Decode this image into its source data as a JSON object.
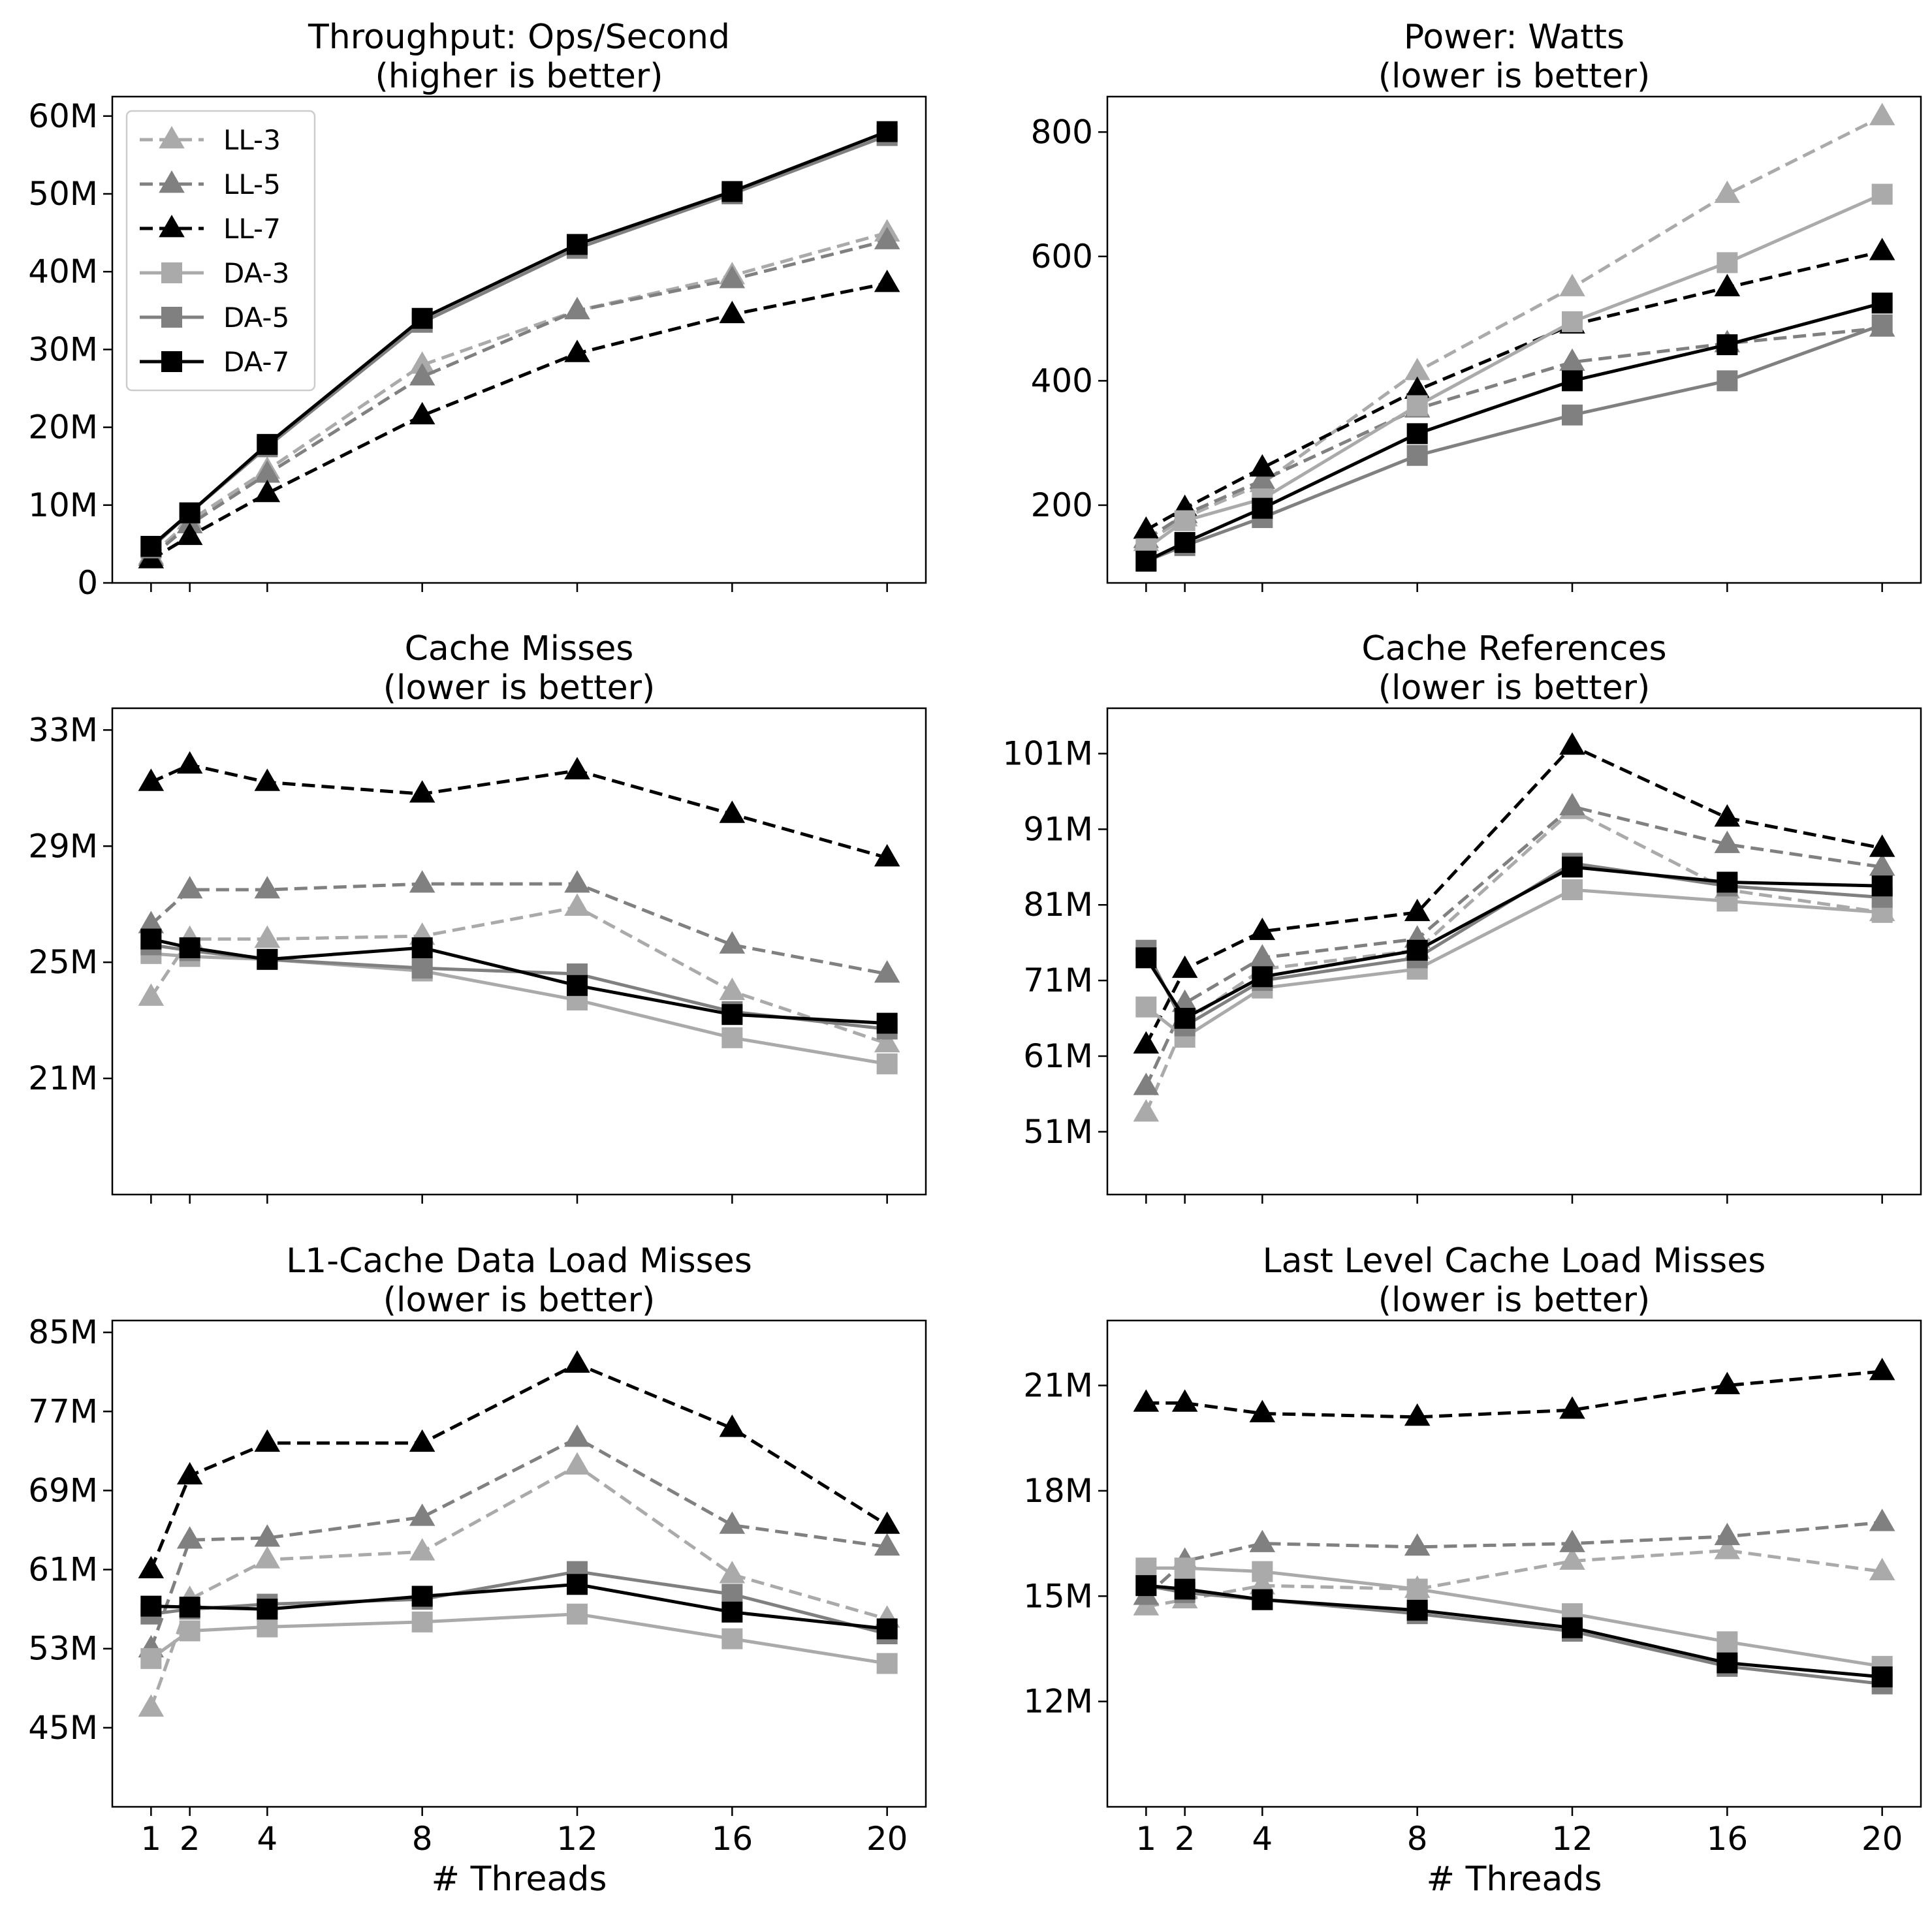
{
  "figure": {
    "x_axis_label": "# Threads",
    "legend": {
      "placement": "upper-left of first panel",
      "entries": [
        {
          "name": "LL-3",
          "color": "#aaaaaa",
          "dash": true,
          "marker": "triangle"
        },
        {
          "name": "LL-5",
          "color": "#808080",
          "dash": true,
          "marker": "triangle"
        },
        {
          "name": "LL-7",
          "color": "#000000",
          "dash": true,
          "marker": "triangle"
        },
        {
          "name": "DA-3",
          "color": "#aaaaaa",
          "dash": false,
          "marker": "square"
        },
        {
          "name": "DA-5",
          "color": "#808080",
          "dash": false,
          "marker": "square"
        },
        {
          "name": "DA-7",
          "color": "#000000",
          "dash": false,
          "marker": "square"
        }
      ]
    }
  },
  "chart_data": [
    {
      "type": "line",
      "title": "Throughput: Ops/Second",
      "subtitle": "(higher is better)",
      "xlabel": "",
      "ylabel": "",
      "x": [
        1,
        2,
        4,
        8,
        12,
        16,
        20
      ],
      "xlim": [
        0,
        21
      ],
      "ylim": [
        0,
        62.5
      ],
      "yticks": [
        0,
        10,
        20,
        30,
        40,
        50,
        60
      ],
      "ytick_labels": [
        "0",
        "10M",
        "20M",
        "30M",
        "40M",
        "50M",
        "60M"
      ],
      "show_x_tick_labels": false,
      "series": [
        {
          "name": "LL-3",
          "values": [
            3.5,
            8.0,
            14.5,
            28.0,
            35.0,
            39.5,
            45.0
          ]
        },
        {
          "name": "LL-5",
          "values": [
            3.3,
            7.5,
            14.0,
            26.5,
            35.0,
            39.0,
            44.0
          ]
        },
        {
          "name": "LL-7",
          "values": [
            3.0,
            6.0,
            11.5,
            21.5,
            29.5,
            34.5,
            38.5
          ]
        },
        {
          "name": "DA-3",
          "values": [
            4.5,
            9.0,
            17.5,
            33.5,
            43.0,
            50.0,
            57.5
          ]
        },
        {
          "name": "DA-5",
          "values": [
            4.5,
            9.0,
            17.5,
            33.5,
            43.0,
            50.0,
            57.5
          ]
        },
        {
          "name": "DA-7",
          "values": [
            4.7,
            9.0,
            17.8,
            34.0,
            43.5,
            50.3,
            58.0
          ]
        }
      ]
    },
    {
      "type": "line",
      "title": "Power: Watts",
      "subtitle": "(lower is better)",
      "xlabel": "",
      "ylabel": "",
      "x": [
        1,
        2,
        4,
        8,
        12,
        16,
        20
      ],
      "xlim": [
        0,
        21
      ],
      "ylim": [
        75,
        857
      ],
      "yticks": [
        200,
        400,
        600,
        800
      ],
      "ytick_labels": [
        "200",
        "400",
        "600",
        "800"
      ],
      "show_x_tick_labels": false,
      "series": [
        {
          "name": "LL-3",
          "values": [
            140,
            180,
            235,
            415,
            550,
            700,
            825
          ]
        },
        {
          "name": "LL-5",
          "values": [
            145,
            185,
            240,
            355,
            430,
            460,
            485
          ]
        },
        {
          "name": "LL-7",
          "values": [
            160,
            195,
            260,
            385,
            490,
            550,
            608
          ]
        },
        {
          "name": "DA-3",
          "values": [
            130,
            175,
            210,
            360,
            495,
            590,
            700
          ]
        },
        {
          "name": "DA-5",
          "values": [
            110,
            135,
            180,
            280,
            345,
            400,
            490
          ]
        },
        {
          "name": "DA-7",
          "values": [
            110,
            140,
            195,
            315,
            400,
            458,
            525
          ]
        }
      ]
    },
    {
      "type": "line",
      "title": "Cache Misses",
      "subtitle": "(lower is better)",
      "xlabel": "",
      "ylabel": "",
      "x": [
        1,
        2,
        4,
        8,
        12,
        16,
        20
      ],
      "xlim": [
        0,
        21
      ],
      "ylim": [
        17,
        33.75
      ],
      "yticks": [
        21,
        25,
        29,
        33
      ],
      "ytick_labels": [
        "21M",
        "25M",
        "29M",
        "33M"
      ],
      "show_x_tick_labels": false,
      "series": [
        {
          "name": "LL-3",
          "values": [
            23.8,
            25.8,
            25.8,
            25.9,
            26.9,
            24.0,
            22.2
          ]
        },
        {
          "name": "LL-5",
          "values": [
            26.3,
            27.5,
            27.5,
            27.7,
            27.7,
            25.6,
            24.6
          ]
        },
        {
          "name": "LL-7",
          "values": [
            31.2,
            31.8,
            31.2,
            30.8,
            31.6,
            30.1,
            28.6
          ]
        },
        {
          "name": "DA-3",
          "values": [
            25.3,
            25.2,
            25.1,
            24.7,
            23.7,
            22.4,
            21.5
          ]
        },
        {
          "name": "DA-5",
          "values": [
            25.6,
            25.4,
            25.1,
            24.8,
            24.6,
            23.3,
            22.7
          ]
        },
        {
          "name": "DA-7",
          "values": [
            25.8,
            25.5,
            25.1,
            25.5,
            24.2,
            23.2,
            22.9
          ]
        }
      ]
    },
    {
      "type": "line",
      "title": "Cache References",
      "subtitle": "(lower is better)",
      "xlabel": "",
      "ylabel": "",
      "x": [
        1,
        2,
        4,
        8,
        12,
        16,
        20
      ],
      "xlim": [
        0,
        21
      ],
      "ylim": [
        42.7,
        107
      ],
      "yticks": [
        51,
        61,
        71,
        81,
        91,
        101
      ],
      "ytick_labels": [
        "51M",
        "61M",
        "71M",
        "81M",
        "91M",
        "101M"
      ],
      "show_x_tick_labels": false,
      "series": [
        {
          "name": "LL-3",
          "values": [
            53.5,
            65.5,
            72.5,
            75.0,
            93.5,
            83.0,
            80.0
          ]
        },
        {
          "name": "LL-5",
          "values": [
            57.0,
            68.0,
            74.0,
            76.5,
            94.0,
            89.0,
            86.0
          ]
        },
        {
          "name": "LL-7",
          "values": [
            62.5,
            72.5,
            77.5,
            80.0,
            102.0,
            92.5,
            88.5
          ]
        },
        {
          "name": "DA-3",
          "values": [
            67.5,
            63.5,
            70.0,
            72.5,
            83.0,
            81.5,
            80.0
          ]
        },
        {
          "name": "DA-5",
          "values": [
            75.0,
            65.0,
            71.0,
            74.0,
            86.5,
            83.5,
            82.0
          ]
        },
        {
          "name": "DA-7",
          "values": [
            74.0,
            66.0,
            71.5,
            75.0,
            86.0,
            84.0,
            83.5
          ]
        }
      ]
    },
    {
      "type": "line",
      "title": "L1-Cache Data Load Misses",
      "subtitle": "(lower is better)",
      "xlabel": "# Threads",
      "ylabel": "",
      "x": [
        1,
        2,
        4,
        8,
        12,
        16,
        20
      ],
      "xlim": [
        0,
        21
      ],
      "ylim": [
        37,
        86.2
      ],
      "yticks": [
        45,
        53,
        61,
        69,
        77,
        85
      ],
      "ytick_labels": [
        "45M",
        "53M",
        "61M",
        "69M",
        "77M",
        "85M"
      ],
      "x_tick_labels": [
        "1",
        "2",
        "4",
        "8",
        "12",
        "16",
        "20"
      ],
      "show_x_tick_labels": true,
      "series": [
        {
          "name": "LL-3",
          "values": [
            47.0,
            58.0,
            62.0,
            62.8,
            71.5,
            60.5,
            56.0
          ]
        },
        {
          "name": "LL-5",
          "values": [
            53.0,
            64.0,
            64.2,
            66.3,
            74.3,
            65.5,
            63.3
          ]
        },
        {
          "name": "LL-7",
          "values": [
            61.0,
            70.5,
            73.8,
            73.8,
            81.8,
            75.3,
            65.5
          ]
        },
        {
          "name": "DA-3",
          "values": [
            52.0,
            54.8,
            55.2,
            55.7,
            56.5,
            54.0,
            51.5
          ]
        },
        {
          "name": "DA-5",
          "values": [
            56.5,
            57.0,
            57.5,
            58.0,
            60.8,
            58.5,
            54.5
          ]
        },
        {
          "name": "DA-7",
          "values": [
            57.3,
            57.2,
            57.0,
            58.3,
            59.5,
            56.7,
            55.0
          ]
        }
      ]
    },
    {
      "type": "line",
      "title": "Last Level Cache Load Misses",
      "subtitle": "(lower is better)",
      "xlabel": "# Threads",
      "ylabel": "",
      "x": [
        1,
        2,
        4,
        8,
        12,
        16,
        20
      ],
      "xlim": [
        0,
        21
      ],
      "ylim": [
        9,
        22.85
      ],
      "yticks": [
        12,
        15,
        18,
        21
      ],
      "ytick_labels": [
        "12M",
        "15M",
        "18M",
        "21M"
      ],
      "x_tick_labels": [
        "1",
        "2",
        "4",
        "8",
        "12",
        "16",
        "20"
      ],
      "show_x_tick_labels": true,
      "series": [
        {
          "name": "LL-3",
          "values": [
            14.7,
            14.9,
            15.3,
            15.2,
            16.0,
            16.3,
            15.7
          ]
        },
        {
          "name": "LL-5",
          "values": [
            15.0,
            16.0,
            16.5,
            16.4,
            16.5,
            16.7,
            17.1
          ]
        },
        {
          "name": "LL-7",
          "values": [
            20.5,
            20.5,
            20.2,
            20.1,
            20.3,
            21.0,
            21.4
          ]
        },
        {
          "name": "DA-3",
          "values": [
            15.8,
            15.8,
            15.7,
            15.2,
            14.5,
            13.7,
            13.0
          ]
        },
        {
          "name": "DA-5",
          "values": [
            15.3,
            15.1,
            14.9,
            14.5,
            14.0,
            13.0,
            12.5
          ]
        },
        {
          "name": "DA-7",
          "values": [
            15.3,
            15.2,
            14.9,
            14.6,
            14.1,
            13.1,
            12.7
          ]
        }
      ]
    }
  ]
}
